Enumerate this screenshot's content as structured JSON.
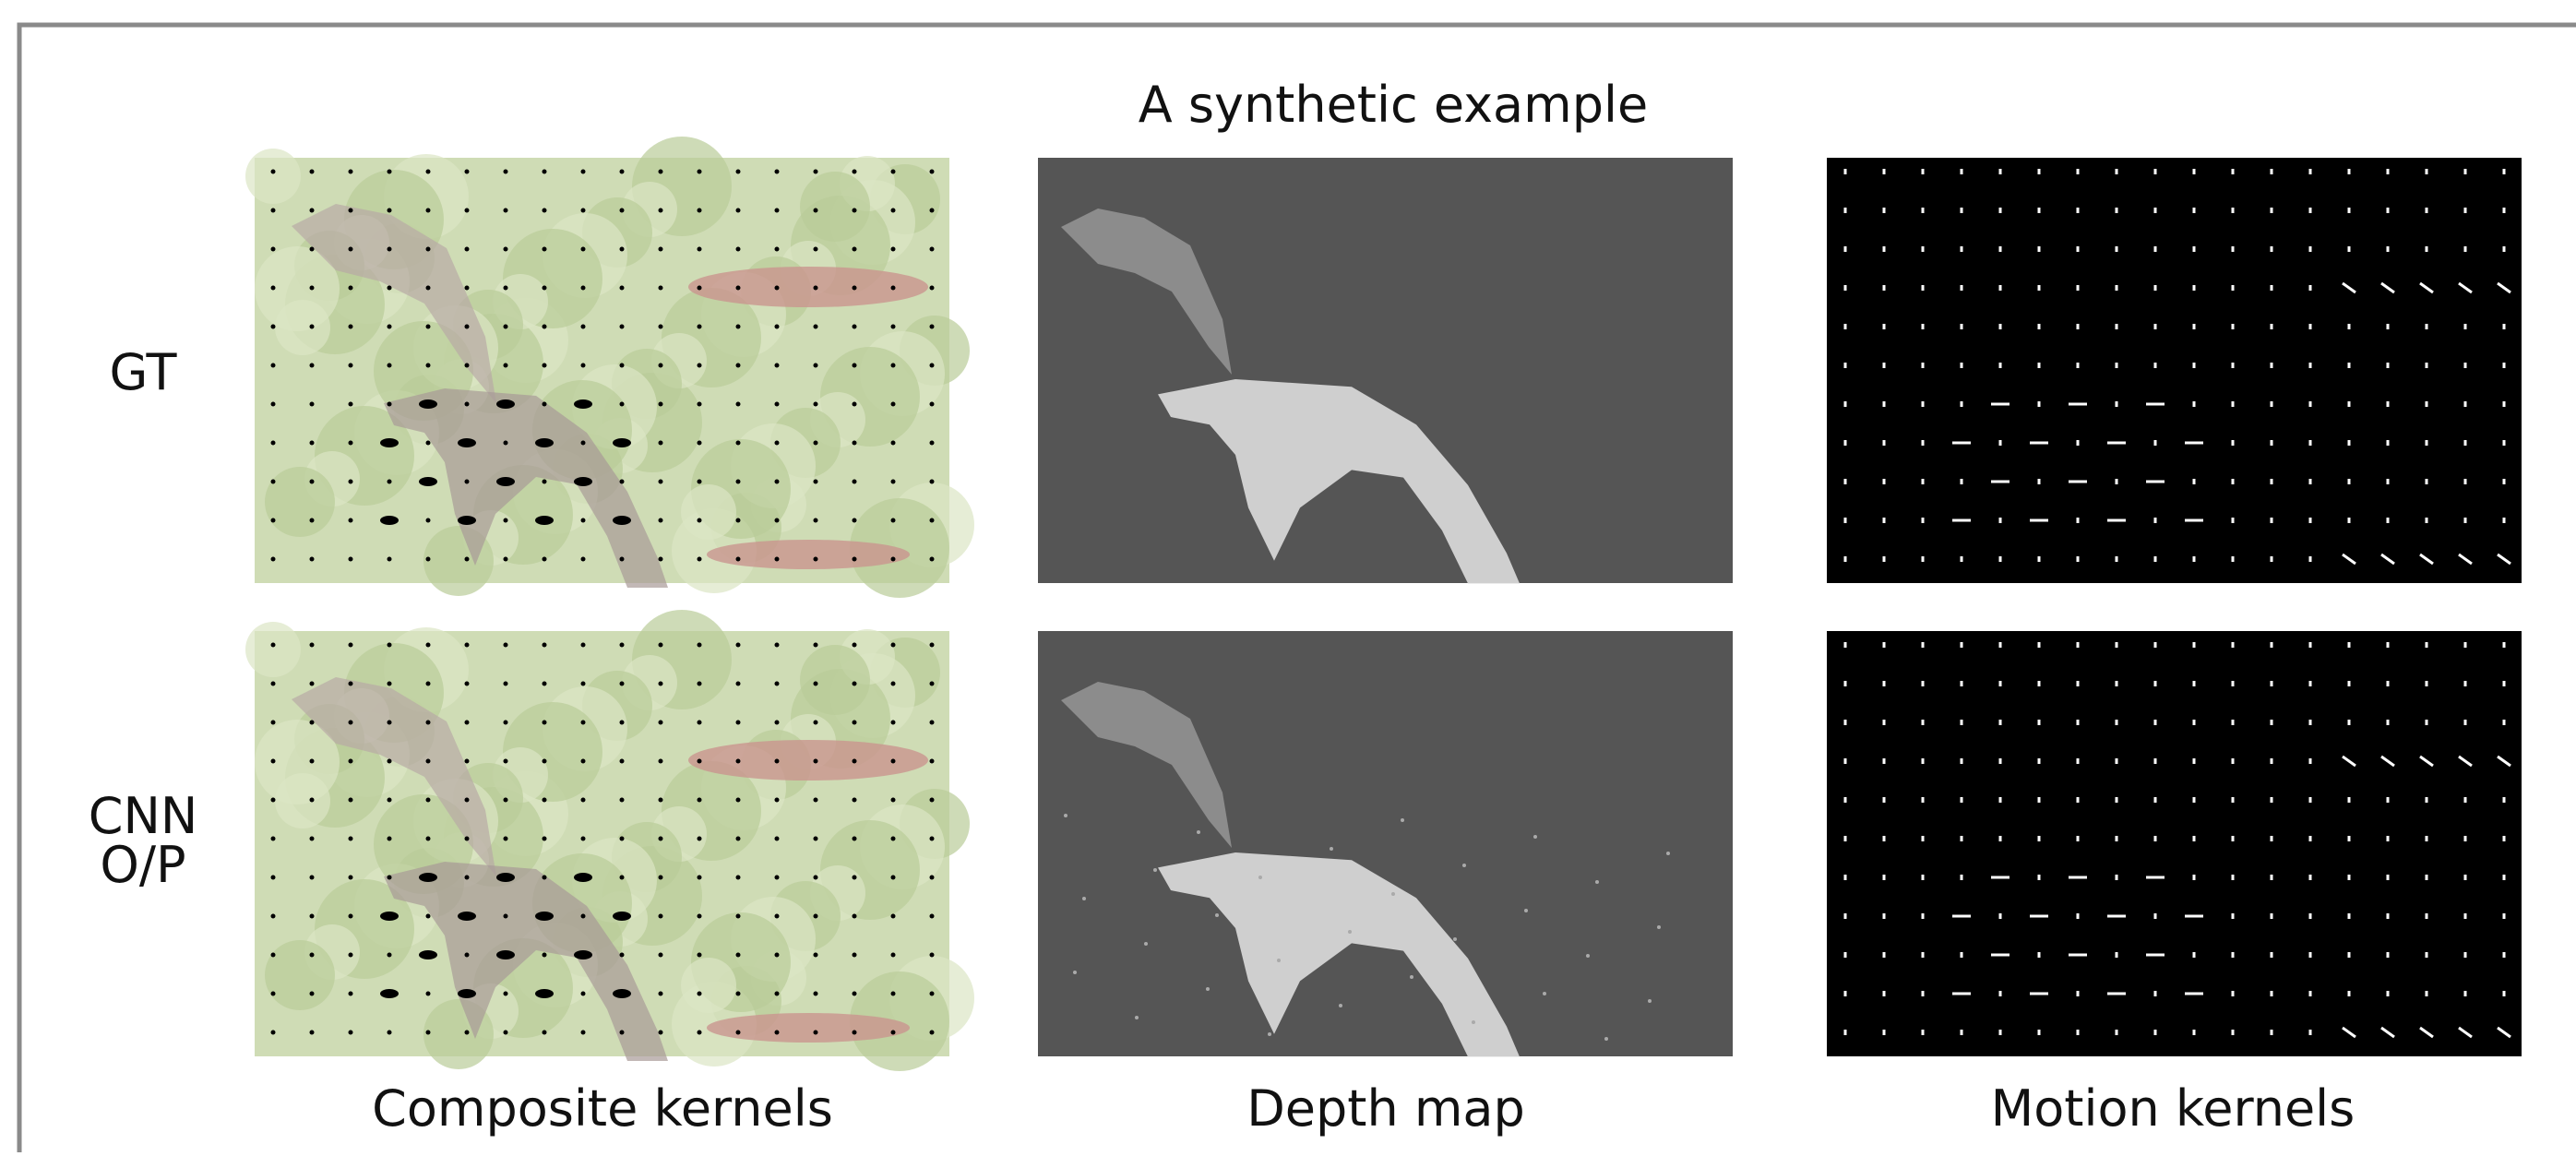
{
  "title": "A synthetic example",
  "rows": [
    {
      "label": [
        "GT"
      ]
    },
    {
      "label": [
        "CNN",
        "O/P"
      ]
    }
  ],
  "columns": [
    {
      "label": "Composite kernels"
    },
    {
      "label": "Depth map"
    },
    {
      "label": "Motion kernels"
    }
  ]
}
